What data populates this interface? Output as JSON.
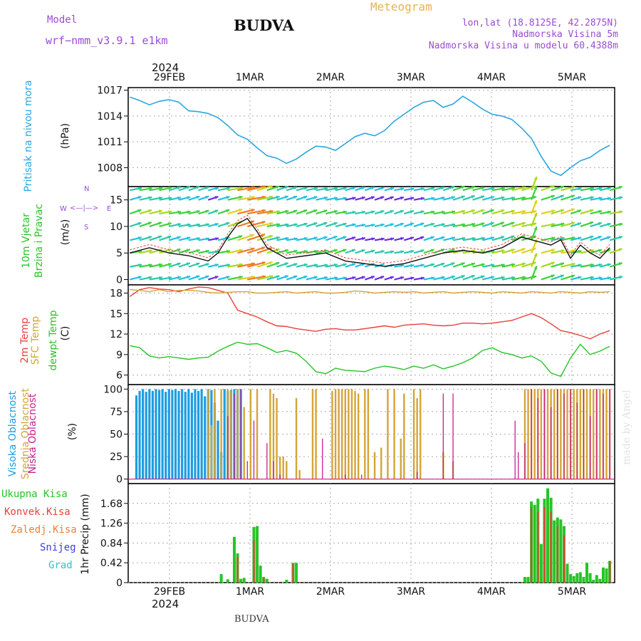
{
  "header": {
    "model_label": "Model",
    "model_value": "wrf−nmm_v3.9.1  e1km",
    "title": "BUDVA",
    "meteogram": "Meteogram",
    "lonlat": "lon,lat (18.8125E, 42.2875N)",
    "elev": "Nadmorska Visina 5m",
    "model_elev": "Nadmorska Visina u modelu 60.4388m",
    "footer": "BUDVA",
    "watermark": "made by Angel"
  },
  "colors": {
    "pressure": "#2aa6e0",
    "temp2m": "#e8403a",
    "sfc": "#d4a437",
    "dewpt": "#27c427",
    "high_cloud": "#1e9de0",
    "mid_cloud": "#d4a437",
    "low_cloud": "#c8208f",
    "rain_total": "#27c427",
    "rain_conv": "#e8403a",
    "frz_rain": "#f08030",
    "snow": "#3d3ddf",
    "hail": "#2cc6c6"
  },
  "axis": {
    "top_year": "2024",
    "dates": [
      "29FEB",
      "1MAR",
      "2MAR",
      "3MAR",
      "4MAR",
      "5MAR"
    ],
    "bottom_year": "2024"
  },
  "labels": {
    "p1_a": "Pritisak na nivou mora",
    "p1_b": "(hPa)",
    "p2_a": "10m Vjetar",
    "p2_b": "Brzina i Pravac",
    "p2_c": "(m/s)",
    "compass_n": "N",
    "compass_s": "S",
    "compass_w": "W",
    "compass_e": "E",
    "p3_a": "2m Temp",
    "p3_b": "SFC Temp",
    "p3_c": "dewpt Temp",
    "p3_d": "(C)",
    "p4_a": "Visoka Oblacnost",
    "p4_b": "Srednja Oblacnost",
    "p4_c": "Niska Oblacnost",
    "p4_d": "(%)",
    "p5_a": "Ukupna Kisa",
    "p5_b": "Konvek.Kisa",
    "p5_c": "Zaledj.Kisa",
    "p5_d": "Snijeg",
    "p5_e": "Grad",
    "p5_f": "1hr Precip (mm)"
  },
  "chart_data": [
    {
      "type": "line",
      "title": "Pritisak na nivou mora",
      "ylabel": "(hPa)",
      "ylim": [
        1005.8,
        1017.3
      ],
      "yticks": [
        "1008",
        "1011",
        "1014",
        "1017"
      ],
      "series": [
        {
          "name": "Pritisak na nivou mora",
          "x": [
            0,
            3,
            6,
            9,
            12,
            15,
            18,
            21,
            24,
            27,
            30,
            33,
            36,
            39,
            42,
            45,
            48,
            51,
            54,
            57,
            60,
            63,
            66,
            69,
            72,
            75,
            78,
            81,
            84,
            87,
            90,
            93,
            96,
            99,
            102,
            105,
            108,
            111,
            114,
            117,
            120,
            123,
            126,
            129,
            132,
            135,
            138,
            141,
            144,
            147
          ],
          "values": [
            1016.2,
            1015.8,
            1015.3,
            1015.7,
            1015.9,
            1015.6,
            1014.6,
            1014.5,
            1014.3,
            1013.8,
            1012.9,
            1011.8,
            1011.3,
            1010.3,
            1009.4,
            1009.1,
            1008.5,
            1009.0,
            1009.8,
            1010.5,
            1010.4,
            1010.0,
            1010.8,
            1011.6,
            1012.0,
            1011.7,
            1012.3,
            1013.4,
            1014.2,
            1015.0,
            1015.6,
            1015.8,
            1015.0,
            1015.4,
            1016.3,
            1015.6,
            1014.8,
            1014.2,
            1014.0,
            1013.6,
            1012.6,
            1011.4,
            1009.3,
            1007.6,
            1007.1,
            1008.0,
            1008.8,
            1009.2,
            1010.0,
            1010.6
          ]
        }
      ]
    },
    {
      "type": "line",
      "title": "10m Vjetar Brzina i Pravac",
      "ylabel": "(m/s)",
      "ylim": [
        -1,
        17.5
      ],
      "yticks": [
        "0",
        "5",
        "10",
        "15"
      ],
      "series": [
        {
          "name": "10m Vjetar",
          "x": [
            0,
            6,
            12,
            18,
            24,
            27,
            30,
            33,
            36,
            39,
            42,
            48,
            54,
            60,
            66,
            72,
            78,
            84,
            90,
            96,
            102,
            108,
            114,
            120,
            126,
            129,
            132,
            135,
            138,
            141,
            144,
            147
          ],
          "values": [
            5.0,
            6.0,
            5.0,
            4.5,
            3.5,
            5.0,
            8.0,
            10.5,
            11.5,
            9.0,
            6.0,
            4.0,
            4.5,
            5.0,
            3.5,
            3.0,
            2.5,
            3.0,
            4.0,
            5.0,
            5.5,
            5.0,
            6.0,
            8.0,
            7.0,
            6.5,
            7.5,
            4.0,
            6.5,
            5.0,
            4.0,
            6.0
          ]
        }
      ]
    },
    {
      "type": "line",
      "title": "2m Temp / SFC Temp / dewpt Temp",
      "ylabel": "(C)",
      "ylim": [
        4.6,
        19.2
      ],
      "yticks": [
        "6",
        "9",
        "12",
        "15",
        "18"
      ],
      "x": [
        0,
        3,
        6,
        9,
        12,
        15,
        18,
        21,
        24,
        27,
        30,
        33,
        36,
        39,
        42,
        45,
        48,
        51,
        54,
        57,
        60,
        63,
        66,
        69,
        72,
        75,
        78,
        81,
        84,
        87,
        90,
        93,
        96,
        99,
        102,
        105,
        108,
        111,
        114,
        117,
        120,
        123,
        126,
        129,
        132,
        135,
        138,
        141,
        144,
        147
      ],
      "series": [
        {
          "name": "2m Temp",
          "values": [
            17.5,
            18.5,
            18.8,
            18.6,
            18.5,
            18.2,
            18.6,
            18.9,
            18.8,
            18.4,
            18.0,
            15.5,
            15.0,
            14.5,
            13.8,
            13.2,
            13.1,
            12.8,
            12.6,
            12.4,
            12.7,
            12.8,
            12.6,
            12.6,
            12.8,
            13.0,
            13.2,
            13.0,
            13.3,
            13.4,
            13.5,
            13.3,
            13.2,
            13.3,
            13.6,
            13.6,
            13.5,
            13.6,
            13.8,
            14.0,
            14.5,
            15.0,
            14.4,
            13.5,
            12.5,
            12.2,
            11.8,
            11.3,
            12.0,
            12.5
          ]
        },
        {
          "name": "SFC Temp",
          "values": [
            18.5,
            18.4,
            18.2,
            18.5,
            18.2,
            18.4,
            18.4,
            18.3,
            18.1,
            18.0,
            18.1,
            18.2,
            18.2,
            18.0,
            18.0,
            18.1,
            18.2,
            18.0,
            18.1,
            18.2,
            18.0,
            18.0,
            18.1,
            18.3,
            18.2,
            18.0,
            18.1,
            18.2,
            18.1,
            18.2,
            18.0,
            18.1,
            18.2,
            18.0,
            18.1,
            18.2,
            18.1,
            18.0,
            18.2,
            18.1,
            18.0,
            18.2,
            18.1,
            18.0,
            18.2,
            18.1,
            18.0,
            18.2,
            18.1,
            18.2
          ]
        },
        {
          "name": "dewpt Temp",
          "values": [
            10.3,
            10.0,
            8.8,
            8.5,
            8.7,
            8.5,
            8.3,
            8.5,
            8.6,
            9.5,
            10.2,
            10.8,
            10.5,
            10.6,
            10.0,
            9.3,
            9.6,
            9.2,
            8.0,
            6.5,
            6.2,
            7.0,
            6.7,
            6.6,
            6.5,
            7.0,
            7.3,
            7.1,
            6.8,
            7.3,
            7.0,
            7.5,
            6.9,
            7.3,
            7.8,
            8.5,
            9.6,
            10.0,
            9.3,
            9.0,
            8.5,
            8.8,
            8.0,
            6.3,
            5.8,
            8.5,
            10.5,
            9.0,
            9.5,
            10.2
          ]
        }
      ]
    },
    {
      "type": "bar",
      "title": "Visoka / Srednja / Niska Oblacnost",
      "ylabel": "(%)",
      "ylim": [
        -5,
        105
      ],
      "yticks": [
        "0",
        "25",
        "50",
        "75",
        "100"
      ],
      "series": [
        {
          "name": "Visoka Oblacnost",
          "x": [
            2,
            3,
            4,
            5,
            6,
            7,
            8,
            9,
            10,
            11,
            12,
            13,
            14,
            15,
            16,
            17,
            18,
            19,
            20,
            21,
            22,
            23,
            24,
            25,
            26,
            27,
            28,
            29,
            30,
            31,
            32,
            33,
            34
          ],
          "values": [
            93,
            98,
            100,
            97,
            100,
            98,
            100,
            99,
            100,
            97,
            100,
            99,
            100,
            98,
            100,
            97,
            100,
            96,
            100,
            98,
            100,
            92,
            100,
            99,
            85,
            65,
            30,
            100,
            98,
            99,
            100,
            100,
            100
          ]
        },
        {
          "name": "Srednja Oblacnost",
          "x": [
            24,
            25,
            26,
            28,
            30,
            31,
            33,
            35,
            37,
            39,
            43,
            44,
            45,
            46,
            47,
            48,
            51,
            52,
            56,
            57,
            62,
            63,
            64,
            65,
            66,
            67,
            68,
            69,
            70,
            72,
            73,
            75,
            77,
            79,
            81,
            83,
            84,
            87,
            88,
            89,
            96,
            99,
            121,
            122,
            123,
            124,
            125,
            126,
            127,
            128,
            129,
            130,
            131,
            132,
            133,
            134,
            135,
            136,
            137,
            138,
            139,
            140,
            141,
            142,
            143,
            144,
            145,
            146,
            147
          ],
          "values": [
            100,
            60,
            100,
            100,
            100,
            98,
            100,
            80,
            100,
            100,
            100,
            95,
            90,
            25,
            25,
            20,
            90,
            10,
            100,
            100,
            98,
            100,
            100,
            100,
            100,
            100,
            100,
            98,
            95,
            100,
            100,
            30,
            35,
            100,
            100,
            45,
            95,
            100,
            90,
            100,
            30,
            20,
            100,
            100,
            100,
            100,
            100,
            100,
            100,
            100,
            100,
            100,
            100,
            100,
            100,
            100,
            100,
            100,
            100,
            100,
            100,
            100,
            100,
            100,
            100,
            100,
            100,
            100,
            100
          ]
        },
        {
          "name": "Niska Oblacnost",
          "x": [
            30,
            32,
            34,
            36,
            38,
            42,
            44,
            46,
            59,
            66,
            71,
            88,
            96,
            99,
            118,
            119,
            121,
            123,
            125,
            127,
            129,
            131,
            133,
            135,
            137,
            139,
            141,
            143,
            145,
            147
          ],
          "values": [
            70,
            95,
            100,
            20,
            65,
            40,
            20,
            5,
            45,
            5,
            5,
            8,
            95,
            95,
            65,
            30,
            40,
            100,
            90,
            100,
            80,
            100,
            95,
            100,
            85,
            100,
            70,
            100,
            95,
            100
          ]
        }
      ]
    },
    {
      "type": "bar",
      "title": "1hr Precip",
      "ylabel": "1hr Precip (mm)",
      "ylim": [
        0,
        2.1
      ],
      "yticks": [
        "0",
        "0.42",
        "0.84",
        "1.26",
        "1.68"
      ],
      "series": [
        {
          "name": "Ukupna Kisa",
          "x": [
            28,
            30,
            32,
            33,
            34,
            35,
            38,
            39,
            40,
            41,
            42,
            48,
            50,
            51,
            121,
            122,
            123,
            124,
            125,
            126,
            127,
            128,
            129,
            130,
            131,
            132,
            133,
            134,
            135,
            136,
            137,
            138,
            139,
            140,
            141,
            142,
            143,
            144,
            145,
            146,
            147
          ],
          "values": [
            0.18,
            0.07,
            0.97,
            0.62,
            0.08,
            0.1,
            1.18,
            1.2,
            0.36,
            0.12,
            0.08,
            0.06,
            0.42,
            0.42,
            0.12,
            0.12,
            1.72,
            1.65,
            1.78,
            0.82,
            1.78,
            2.0,
            1.8,
            1.32,
            1.38,
            1.34,
            1.2,
            0.4,
            0.18,
            0.14,
            0.2,
            0.22,
            0.12,
            0.42,
            0.2,
            0.06,
            0.16,
            0.08,
            0.32,
            0.3,
            0.46
          ]
        },
        {
          "name": "Konvek.Kisa",
          "x": [
            33,
            38,
            41,
            50,
            123,
            125,
            127,
            129,
            131,
            133,
            147
          ],
          "values": [
            0.55,
            0.9,
            0.1,
            0.4,
            1.6,
            1.5,
            1.6,
            1.5,
            1.2,
            1.0,
            0.46
          ]
        }
      ]
    }
  ]
}
